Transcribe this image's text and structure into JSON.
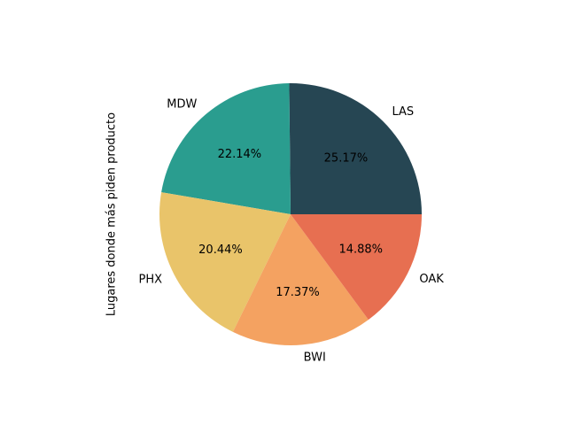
{
  "chart_data": {
    "type": "pie",
    "ylabel": "Lugares donde más piden producto",
    "slices": [
      {
        "label": "LAS",
        "value": 25.17,
        "pct_label": "25.17%",
        "color": "#264653"
      },
      {
        "label": "MDW",
        "value": 22.14,
        "pct_label": "22.14%",
        "color": "#2a9d8f"
      },
      {
        "label": "PHX",
        "value": 20.44,
        "pct_label": "20.44%",
        "color": "#e9c46a"
      },
      {
        "label": "BWI",
        "value": 17.37,
        "pct_label": "17.37%",
        "color": "#f4a261"
      },
      {
        "label": "OAK",
        "value": 14.88,
        "pct_label": "14.88%",
        "color": "#e76f51"
      }
    ]
  }
}
